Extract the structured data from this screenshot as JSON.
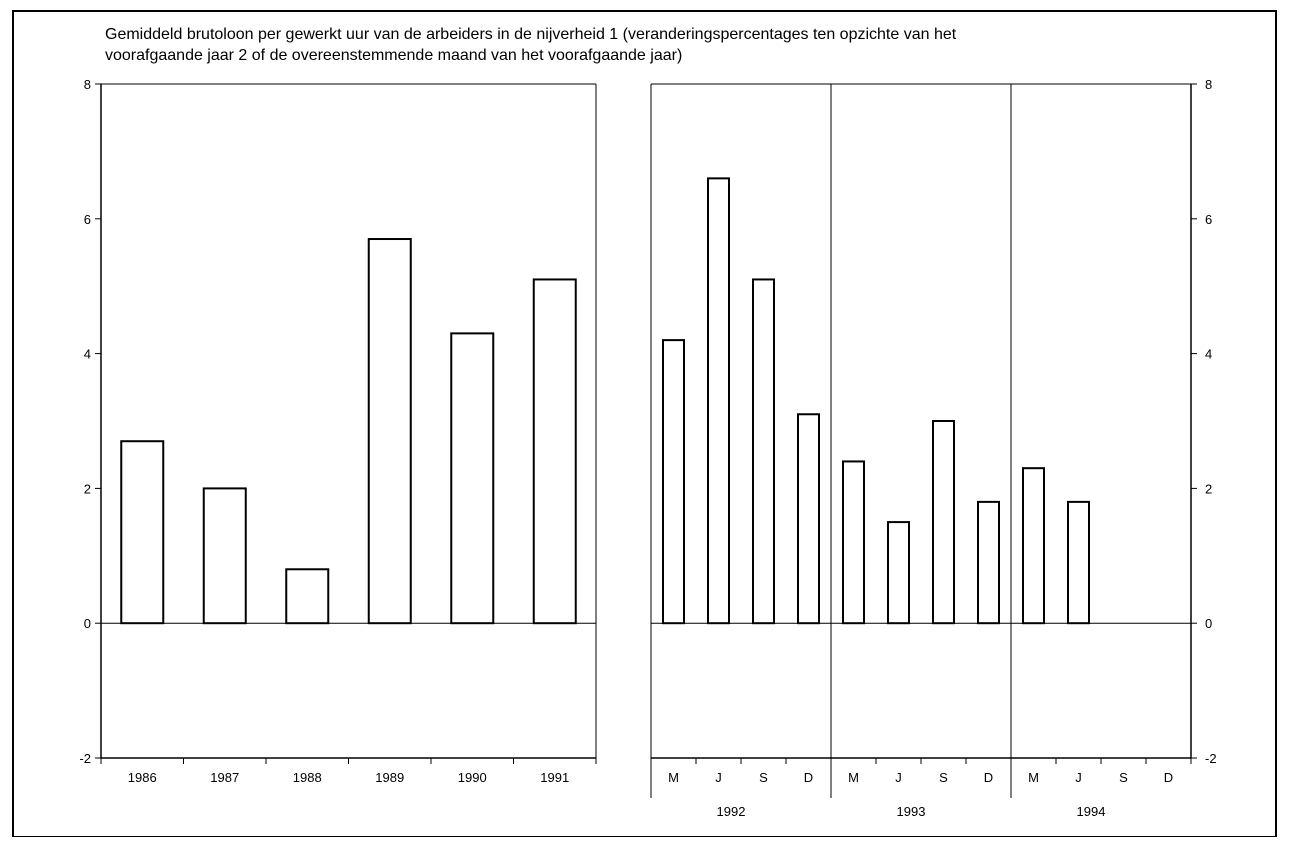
{
  "title_lines": [
    "Gemiddeld brutoloon per gewerkt uur van de arbeiders in de nijverheid 1 (veranderingspercentages ten opzichte van het",
    "voorafgaande jaar 2 of de overeenstemmende maand van het voorafgaande jaar)"
  ],
  "chart_data": [
    {
      "type": "bar",
      "ylim": [
        -2,
        8
      ],
      "yticks": [
        -2,
        0,
        2,
        4,
        6,
        8
      ],
      "categories": [
        "1986",
        "1987",
        "1988",
        "1989",
        "1990",
        "1991"
      ],
      "values": [
        2.7,
        2.0,
        0.8,
        5.7,
        4.3,
        5.1
      ]
    },
    {
      "type": "bar",
      "ylim": [
        -2,
        8
      ],
      "yticks": [
        -2,
        0,
        2,
        4,
        6,
        8
      ],
      "groups": [
        {
          "year": "1992",
          "categories": [
            "M",
            "J",
            "S",
            "D"
          ],
          "values": [
            4.2,
            6.6,
            5.1,
            3.1
          ]
        },
        {
          "year": "1993",
          "categories": [
            "M",
            "J",
            "S",
            "D"
          ],
          "values": [
            2.4,
            1.5,
            3.0,
            1.8
          ]
        },
        {
          "year": "1994",
          "categories": [
            "M",
            "J",
            "S",
            "D"
          ],
          "values": [
            2.3,
            1.8,
            null,
            null
          ]
        }
      ]
    }
  ]
}
